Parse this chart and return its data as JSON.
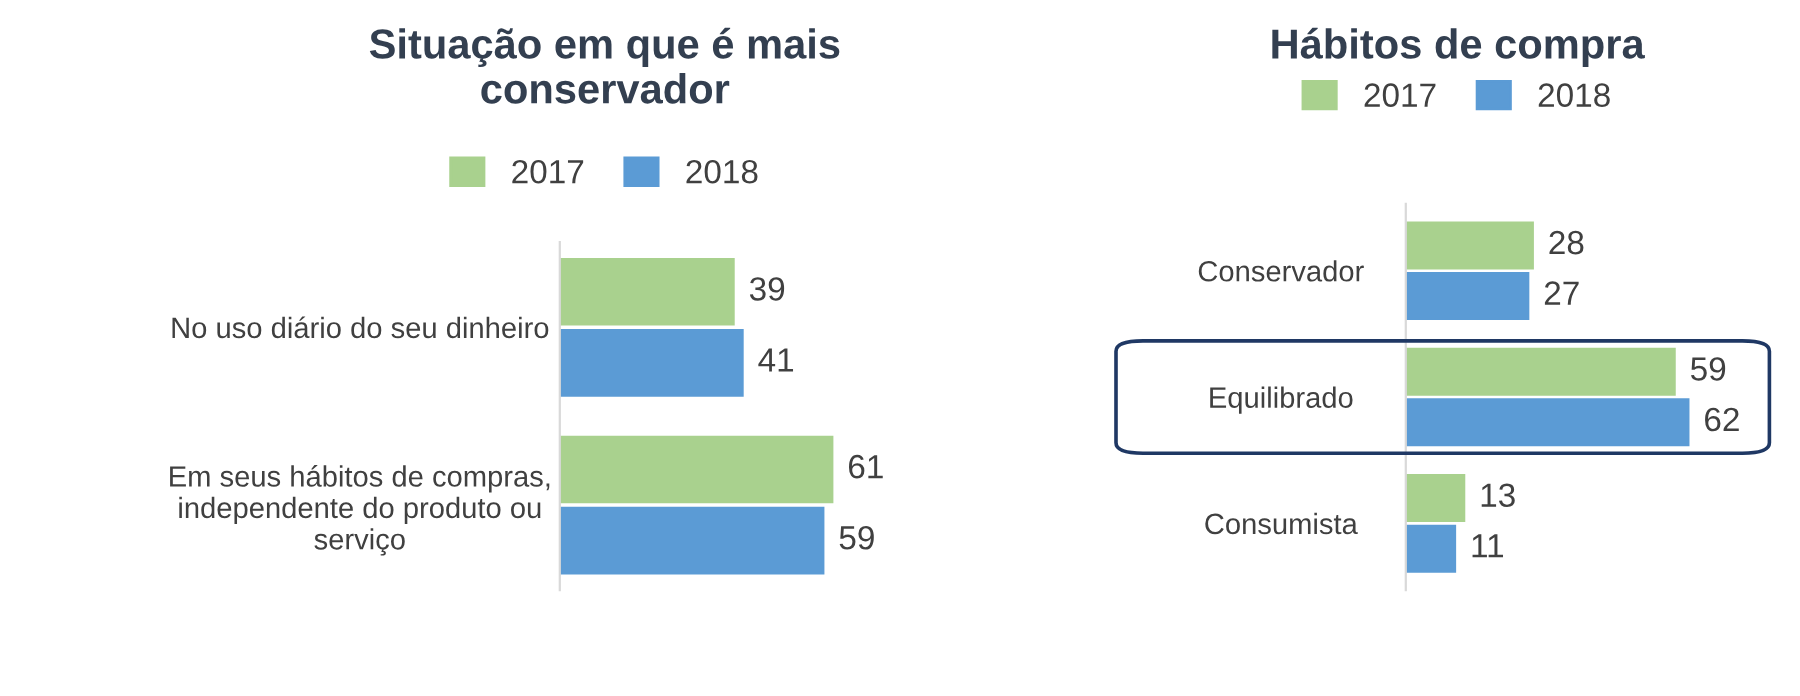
{
  "chart_data": [
    {
      "type": "bar",
      "orientation": "horizontal",
      "title": "Situação em que é mais\nconservador",
      "categories": [
        "No uso diário do seu dinheiro",
        "Em seus hábitos de compras,\nindependente do produto ou\nserviço"
      ],
      "series": [
        {
          "name": "2017",
          "color": "#a9d18e",
          "values": [
            39,
            61
          ]
        },
        {
          "name": "2018",
          "color": "#5b9bd5",
          "values": [
            41,
            59
          ]
        }
      ],
      "data_labels": true,
      "legend": "top",
      "grid": false
    },
    {
      "type": "bar",
      "orientation": "horizontal",
      "title": "Hábitos de compra",
      "categories": [
        "Conservador",
        "Equilibrado",
        "Consumista"
      ],
      "series": [
        {
          "name": "2017",
          "color": "#a9d18e",
          "values": [
            28,
            59,
            13
          ]
        },
        {
          "name": "2018",
          "color": "#5b9bd5",
          "values": [
            27,
            62,
            11
          ]
        }
      ],
      "data_labels": true,
      "legend": "top",
      "grid": false
    }
  ]
}
